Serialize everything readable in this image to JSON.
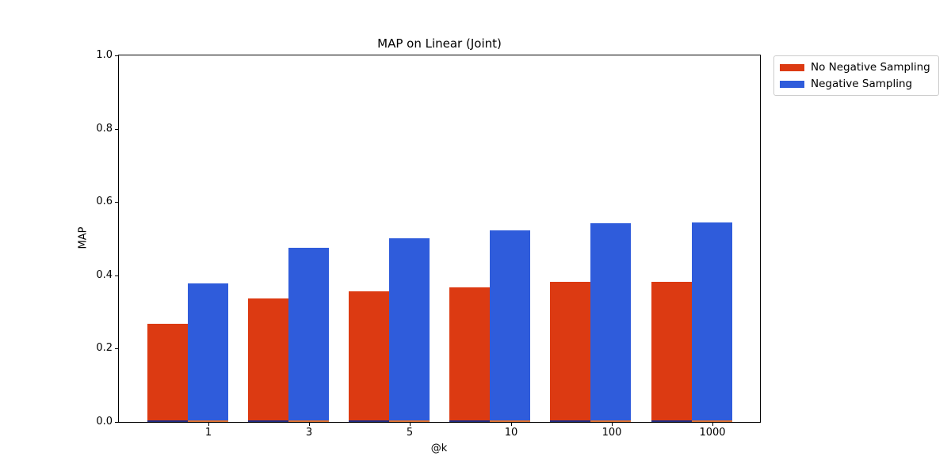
{
  "figure": {
    "background": "#ffffff"
  },
  "chart_data": {
    "type": "bar",
    "title": "MAP on Linear (Joint)",
    "xlabel": "@k",
    "ylabel": "MAP",
    "categories": [
      "1",
      "3",
      "5",
      "10",
      "100",
      "1000"
    ],
    "series": [
      {
        "name": "No Negative Sampling",
        "color": "#dc3a12",
        "values": [
          0.267,
          0.338,
          0.356,
          0.367,
          0.382,
          0.382
        ],
        "baseline_strip_color": "#1e2c82"
      },
      {
        "name": "Negative Sampling",
        "color": "#2f5cdb",
        "values": [
          0.379,
          0.476,
          0.501,
          0.523,
          0.543,
          0.545
        ],
        "baseline_strip_color": "#e0712e"
      }
    ],
    "ylim": [
      0.0,
      1.0
    ],
    "yticks": [
      "0.0",
      "0.2",
      "0.4",
      "0.6",
      "0.8",
      "1.0"
    ],
    "grid": false,
    "legend": {
      "position": "outside-top-right",
      "entries": [
        "No Negative Sampling",
        "Negative Sampling"
      ]
    }
  }
}
